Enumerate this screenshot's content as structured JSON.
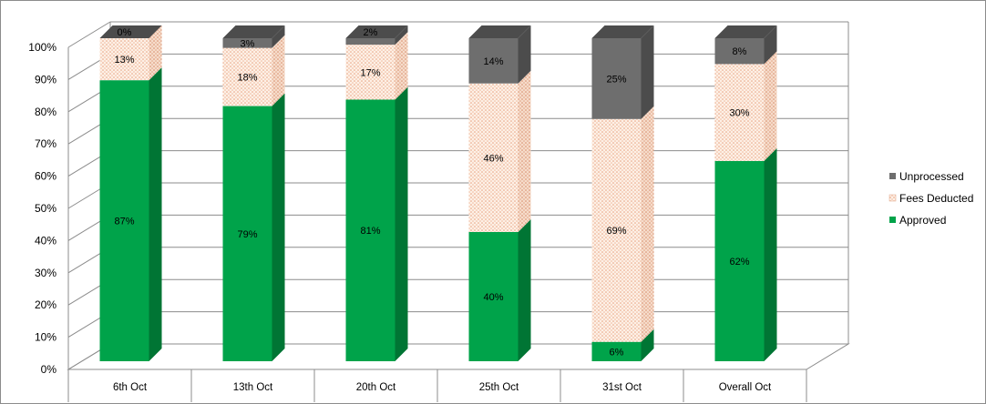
{
  "chart_data": {
    "type": "bar",
    "stacked": true,
    "three_d": true,
    "categories": [
      "6th Oct",
      "13th Oct",
      "20th Oct",
      "25th Oct",
      "31st Oct",
      "Overall Oct"
    ],
    "series": [
      {
        "name": "Approved",
        "values": [
          87,
          79,
          81,
          40,
          6,
          62
        ],
        "color": "#00a34a",
        "side_color": "#007534"
      },
      {
        "name": "Fees Deducted",
        "values": [
          13,
          18,
          17,
          46,
          69,
          30
        ],
        "color": "#fbe3d5",
        "side_color": "#f2cbb5",
        "pattern": "dotted"
      },
      {
        "name": "Unprocessed",
        "values": [
          0,
          3,
          2,
          14,
          25,
          8
        ],
        "color": "#6e6e6e",
        "side_color": "#4c4c4c"
      }
    ],
    "y_ticks": [
      "0%",
      "10%",
      "20%",
      "30%",
      "40%",
      "50%",
      "60%",
      "70%",
      "80%",
      "90%",
      "100%"
    ],
    "ylim": [
      0,
      100
    ],
    "grid": true,
    "legend": "right",
    "legend_order": [
      "Unprocessed",
      "Fees Deducted",
      "Approved"
    ],
    "data_labels": true,
    "label_suffix": "%",
    "title": "",
    "xlabel": "",
    "ylabel": ""
  }
}
